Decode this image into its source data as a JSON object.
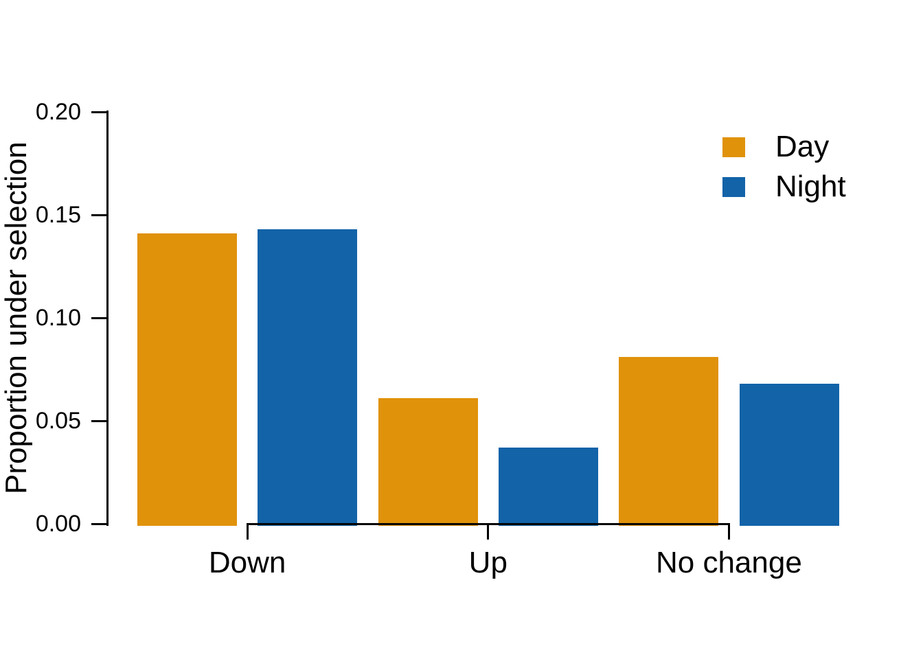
{
  "chart_data": {
    "type": "bar",
    "title": "",
    "xlabel": "",
    "ylabel": "Proportion under selection",
    "categories": [
      "Down",
      "Up",
      "No change"
    ],
    "series": [
      {
        "name": "Day",
        "color": "#E0920B",
        "values": [
          0.141,
          0.061,
          0.081
        ]
      },
      {
        "name": "Night",
        "color": "#1263A8",
        "values": [
          0.143,
          0.037,
          0.068
        ]
      }
    ],
    "ylim": [
      0,
      0.2
    ],
    "yticks": [
      0,
      0.05,
      0.1,
      0.15,
      0.2
    ],
    "ytick_labels": [
      "0.00",
      "0.05",
      "0.10",
      "0.15",
      "0.20"
    ],
    "grid": false,
    "legend_position": "top-right",
    "axis_color": "#000000",
    "background_color": "#ffffff"
  }
}
